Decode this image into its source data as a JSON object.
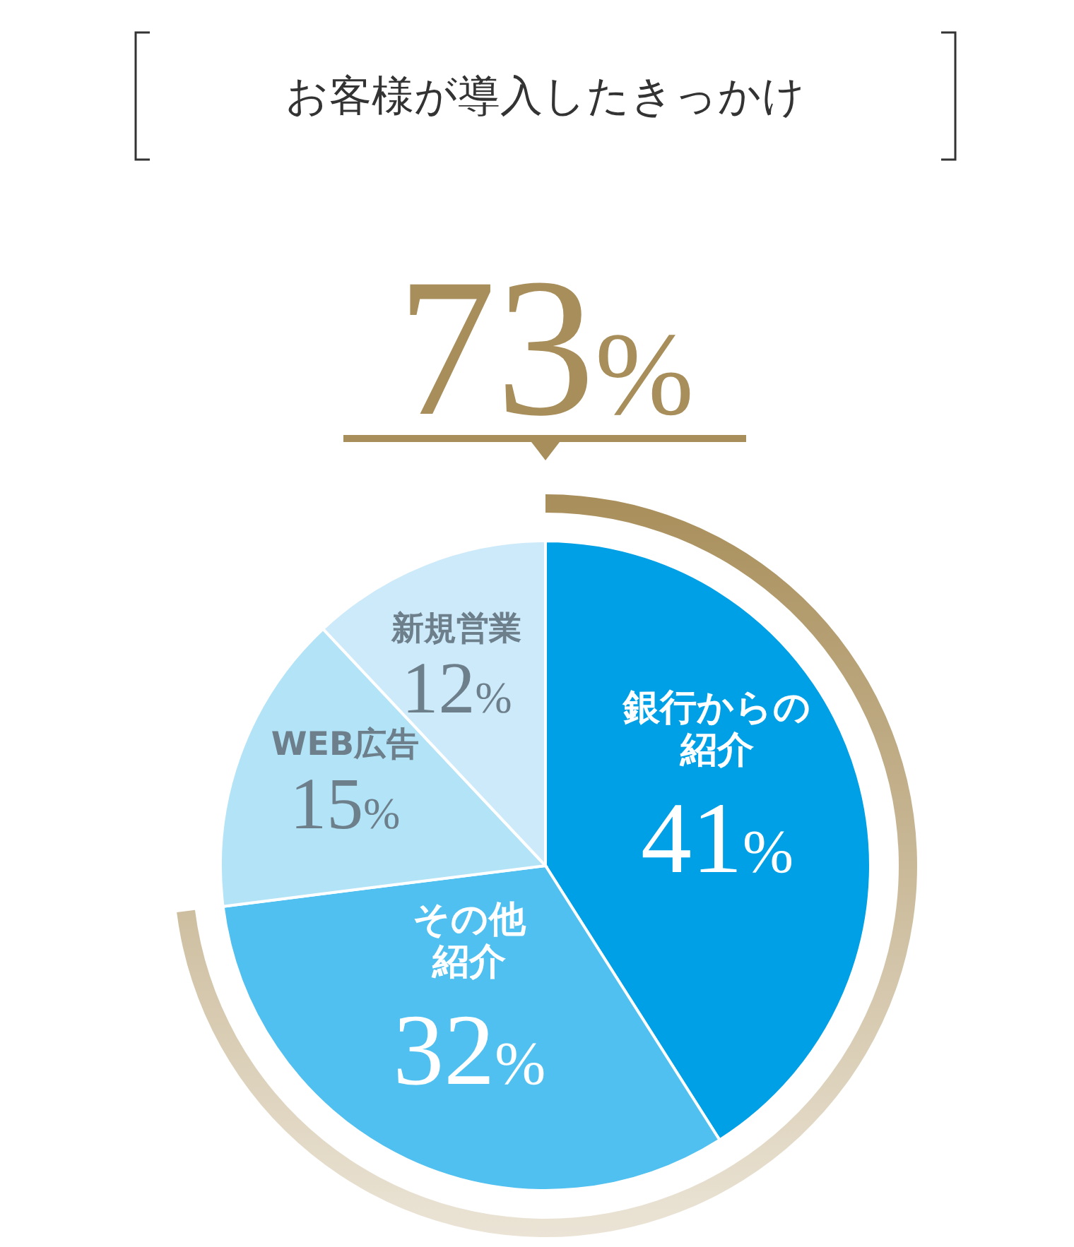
{
  "chart_data": {
    "type": "pie",
    "title": "お客様が導入したきっかけ",
    "categories": [
      "銀行からの紹介",
      "その他紹介",
      "WEB広告",
      "新規営業"
    ],
    "values": [
      41,
      32,
      15,
      12
    ],
    "colors": [
      "#00a0e6",
      "#4fc0f0",
      "#b3e3f7",
      "#cdeafa"
    ],
    "value_labels": [
      "41%",
      "32%",
      "15%",
      "12%"
    ],
    "annotations": [
      "73%"
    ],
    "legend": false
  }
}
